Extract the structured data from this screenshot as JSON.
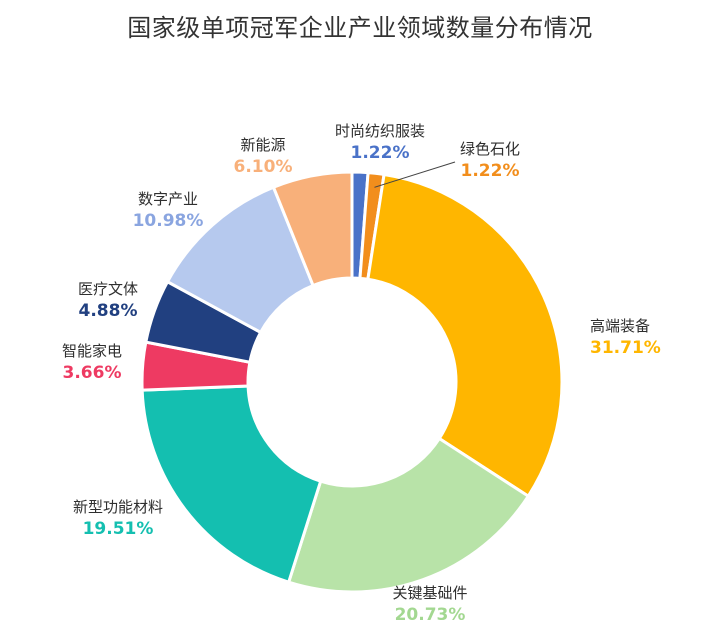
{
  "chart_data": {
    "type": "pie",
    "title": "国家级单项冠军企业产业领域数量分布情况",
    "categories": [
      "时尚纺织服装",
      "绿色石化",
      "高端装备",
      "关键基础件",
      "新型功能材料",
      "智能家电",
      "医疗文体",
      "数字产业",
      "新能源"
    ],
    "values": [
      1.22,
      1.22,
      31.71,
      20.73,
      19.51,
      3.66,
      4.88,
      10.98,
      6.1
    ],
    "value_labels": [
      "1.22%",
      "1.22%",
      "31.71%",
      "20.73%",
      "19.51%",
      "3.66%",
      "4.88%",
      "10.98%",
      "6.10%"
    ],
    "colors": [
      "#4A72C8",
      "#F28E1C",
      "#FFB600",
      "#B8E3A8",
      "#14BFB0",
      "#EE3A62",
      "#214080",
      "#B6C9EE",
      "#F8B07A"
    ],
    "value_label_colors": [
      "#4A72C8",
      "#F28E1C",
      "#FFB600",
      "#A3D891",
      "#14BFB0",
      "#EE3A62",
      "#214080",
      "#8AA5E0",
      "#F8B07A"
    ],
    "donut": true,
    "legend": "none"
  }
}
